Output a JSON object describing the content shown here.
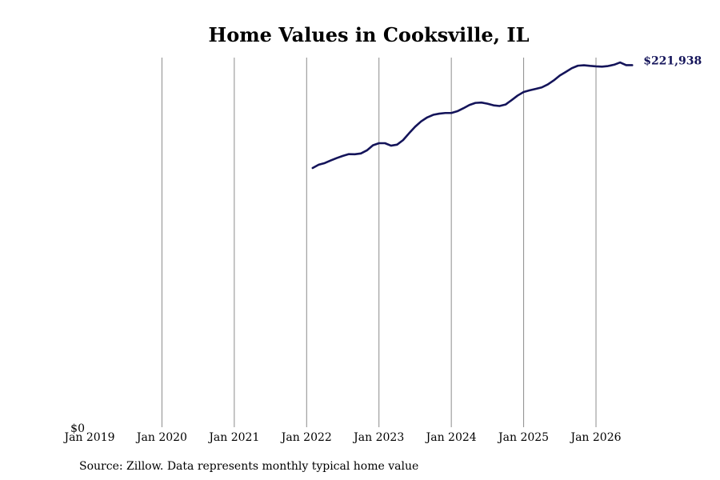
{
  "chart_data": {
    "type": "line",
    "title": "Home Values in Cooksville, IL",
    "xlabel": "",
    "ylabel": "",
    "x_ticks": [
      "Jan 2019",
      "Jan 2020",
      "Jan 2021",
      "Jan 2022",
      "Jan 2023",
      "Jan 2024",
      "Jan 2025",
      "Jan 2026"
    ],
    "y_ticks": [
      "$0"
    ],
    "ylim": [
      0,
      230000
    ],
    "grid": "vertical",
    "end_label": "$221,938",
    "line_color": "#14145a",
    "series": [
      {
        "x": [
          "2022-02",
          "2022-03",
          "2022-04",
          "2022-05",
          "2022-06",
          "2022-07",
          "2022-08",
          "2022-09",
          "2022-10",
          "2022-11",
          "2022-12",
          "2023-01",
          "2023-02",
          "2023-03",
          "2023-04",
          "2023-05",
          "2023-06",
          "2023-07",
          "2023-08",
          "2023-09",
          "2023-10",
          "2023-11",
          "2023-12",
          "2024-01",
          "2024-02",
          "2024-03",
          "2024-04",
          "2024-05",
          "2024-06",
          "2024-07",
          "2024-08",
          "2024-09",
          "2024-10",
          "2024-11",
          "2024-12",
          "2025-01",
          "2025-02",
          "2025-03",
          "2025-04",
          "2025-05",
          "2025-06",
          "2025-07",
          "2025-08",
          "2025-09",
          "2025-10",
          "2025-11",
          "2025-12",
          "2026-01",
          "2026-02",
          "2026-03",
          "2026-04",
          "2026-05",
          "2026-06",
          "2026-07"
        ],
        "values": [
          158900,
          160900,
          161900,
          163500,
          165000,
          166300,
          167400,
          167300,
          167800,
          169700,
          172800,
          174100,
          174100,
          172600,
          173200,
          176000,
          180200,
          184200,
          187500,
          189900,
          191500,
          192200,
          192600,
          192600,
          193700,
          195500,
          197500,
          198800,
          199000,
          198300,
          197300,
          196900,
          197800,
          200500,
          203300,
          205500,
          206500,
          207400,
          208300,
          210100,
          212600,
          215600,
          217800,
          220100,
          221600,
          221900,
          221500,
          221200,
          221000,
          221400,
          222200,
          223600,
          221938,
          221938
        ]
      }
    ],
    "source": "Source: Zillow. Data represents monthly typical home value"
  }
}
